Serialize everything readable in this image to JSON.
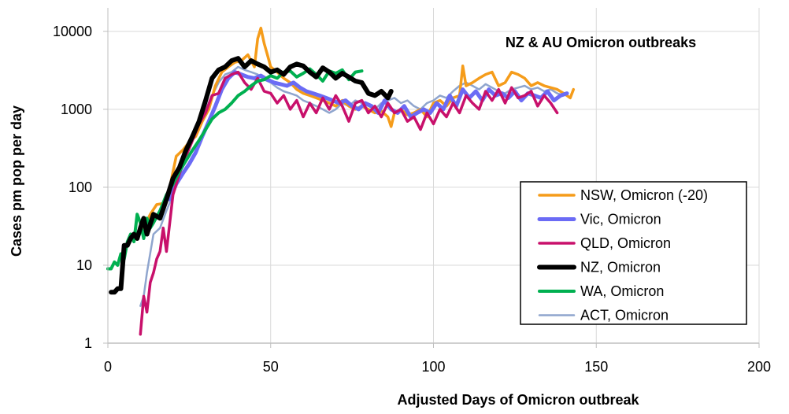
{
  "chart_data": {
    "type": "line",
    "title": "NZ & AU Omicron outbreaks",
    "xlabel": "Adjusted Days of Omicron outbreak",
    "ylabel": "Cases pm pop per day",
    "xlim": [
      0,
      200
    ],
    "ylim": [
      1,
      20000
    ],
    "yscale": "log",
    "grid": true,
    "legend_position": "right",
    "x_ticks": [
      "0",
      "50",
      "100",
      "150",
      "200"
    ],
    "y_ticks": [
      "1",
      "10",
      "100",
      "1000",
      "10000"
    ],
    "series": [
      {
        "name": "NSW, Omicron (-20)",
        "color": "#f59c1a",
        "width": 3.5,
        "x": [
          11,
          13,
          15,
          17,
          19,
          21,
          23,
          25,
          27,
          29,
          31,
          33,
          35,
          37,
          39,
          41,
          43,
          45,
          46,
          47,
          48,
          49,
          50,
          52,
          54,
          56,
          58,
          60,
          62,
          64,
          66,
          68,
          70,
          72,
          74,
          76,
          78,
          80,
          82,
          84,
          86,
          87,
          88,
          90,
          92,
          94,
          96,
          98,
          100,
          102,
          104,
          106,
          108,
          109,
          110,
          112,
          114,
          116,
          118,
          120,
          122,
          124,
          126,
          128,
          130,
          132,
          134,
          136,
          138,
          140,
          142,
          143
        ],
        "y": [
          30,
          45,
          60,
          62,
          100,
          250,
          300,
          380,
          450,
          700,
          1000,
          2000,
          3000,
          3500,
          4000,
          4200,
          5000,
          3500,
          8000,
          11000,
          7000,
          5000,
          3500,
          3000,
          2500,
          2200,
          1800,
          1600,
          1500,
          1400,
          1300,
          1200,
          1100,
          1300,
          1100,
          1000,
          1100,
          1000,
          900,
          950,
          800,
          600,
          900,
          1000,
          850,
          900,
          1000,
          800,
          1200,
          1300,
          1100,
          1400,
          1500,
          3600,
          2000,
          2200,
          2500,
          2800,
          3000,
          2000,
          2200,
          3000,
          2800,
          2500,
          2000,
          2200,
          2000,
          1900,
          1800,
          1600,
          1400,
          1800
        ]
      },
      {
        "name": "Vic, Omicron",
        "color": "#6b6bf5",
        "width": 5,
        "x": [
          19,
          21,
          23,
          25,
          27,
          29,
          31,
          33,
          35,
          37,
          39,
          41,
          43,
          45,
          47,
          49,
          51,
          53,
          55,
          57,
          59,
          61,
          63,
          65,
          67,
          69,
          71,
          73,
          75,
          77,
          79,
          81,
          83,
          85,
          87,
          89,
          91,
          93,
          95,
          97,
          99,
          101,
          103,
          105,
          107,
          109,
          111,
          113,
          115,
          117,
          119,
          121,
          123,
          125,
          127,
          129,
          131,
          133,
          135,
          137,
          139,
          141
        ],
        "y": [
          70,
          110,
          150,
          200,
          280,
          450,
          700,
          1100,
          1800,
          2500,
          3000,
          2800,
          2600,
          2500,
          2700,
          2400,
          2200,
          2100,
          2000,
          2200,
          1900,
          1700,
          1600,
          1500,
          1400,
          1300,
          1200,
          1300,
          1100,
          1000,
          1200,
          1100,
          900,
          1300,
          1000,
          900,
          1100,
          800,
          900,
          1000,
          900,
          1200,
          1000,
          1500,
          1100,
          1800,
          1400,
          1700,
          1300,
          1800,
          1500,
          1600,
          1400,
          1700,
          1300,
          1600,
          1500,
          1400,
          1700,
          1300,
          1500,
          1600
        ]
      },
      {
        "name": "QLD, Omicron",
        "color": "#c8106b",
        "width": 3.5,
        "x": [
          10,
          11,
          12,
          13,
          14,
          15,
          16,
          17,
          18,
          20,
          22,
          24,
          26,
          28,
          30,
          32,
          34,
          36,
          38,
          40,
          42,
          44,
          46,
          48,
          50,
          52,
          54,
          56,
          58,
          60,
          62,
          64,
          66,
          68,
          70,
          72,
          74,
          76,
          78,
          80,
          82,
          84,
          86,
          88,
          90,
          92,
          94,
          96,
          98,
          100,
          102,
          104,
          106,
          108,
          110,
          112,
          114,
          116,
          118,
          120,
          122,
          124,
          126,
          128,
          130,
          132,
          134,
          136,
          138
        ],
        "y": [
          1.3,
          4,
          2.5,
          6,
          8,
          12,
          15,
          30,
          15,
          80,
          150,
          250,
          400,
          650,
          900,
          1500,
          1600,
          2500,
          2800,
          3000,
          2200,
          1800,
          2500,
          1700,
          1600,
          1200,
          1500,
          1000,
          1300,
          800,
          1200,
          900,
          1400,
          1000,
          1500,
          1100,
          700,
          1200,
          1300,
          900,
          1100,
          800,
          1200,
          900,
          1000,
          700,
          800,
          550,
          900,
          650,
          1000,
          800,
          1200,
          900,
          1500,
          1200,
          1000,
          1700,
          1300,
          1800,
          1200,
          1900,
          1400,
          1500,
          1700,
          1100,
          1500,
          1200,
          900
        ]
      },
      {
        "name": "NZ, Omicron",
        "color": "#000000",
        "width": 6,
        "x": [
          1,
          2,
          3,
          4,
          5,
          6,
          7,
          8,
          9,
          10,
          11,
          12,
          14,
          16,
          18,
          20,
          22,
          24,
          26,
          28,
          30,
          32,
          34,
          36,
          38,
          40,
          42,
          44,
          46,
          48,
          50,
          52,
          54,
          56,
          58,
          60,
          62,
          64,
          66,
          68,
          70,
          72,
          74,
          76,
          78,
          80,
          82,
          84,
          86,
          87
        ],
        "y": [
          4.5,
          4.5,
          5,
          5,
          18,
          18,
          22,
          25,
          22,
          30,
          40,
          25,
          45,
          40,
          70,
          130,
          180,
          300,
          450,
          700,
          1300,
          2500,
          3200,
          3500,
          4200,
          4500,
          3500,
          4200,
          3800,
          3500,
          3000,
          3200,
          2800,
          3500,
          3800,
          3600,
          3000,
          2600,
          3400,
          3000,
          2500,
          2900,
          2600,
          2300,
          2200,
          1600,
          1500,
          1700,
          1400,
          1700
        ]
      },
      {
        "name": "WA, Omicron",
        "color": "#00b050",
        "width": 4,
        "x": [
          0,
          1,
          2,
          3,
          4,
          5,
          6,
          7,
          8,
          9,
          10,
          11,
          12,
          13,
          14,
          16,
          18,
          20,
          22,
          24,
          26,
          28,
          30,
          32,
          34,
          36,
          38,
          40,
          42,
          44,
          46,
          48,
          50,
          52,
          54,
          56,
          58,
          60,
          62,
          64,
          66,
          68,
          70,
          72,
          74,
          76,
          78
        ],
        "y": [
          9,
          9,
          11,
          10,
          14,
          12,
          20,
          25,
          20,
          45,
          35,
          22,
          40,
          30,
          35,
          50,
          80,
          110,
          160,
          220,
          300,
          400,
          550,
          750,
          900,
          1000,
          1200,
          1500,
          1700,
          2000,
          2300,
          2400,
          2700,
          2500,
          3000,
          3100,
          2600,
          2900,
          3300,
          2800,
          2300,
          3100,
          2900,
          3200,
          2400,
          3000,
          3100
        ]
      },
      {
        "name": "ACT, Omicron",
        "color": "#8fa5ce",
        "width": 2.5,
        "x": [
          10,
          11,
          12,
          14,
          16,
          18,
          20,
          22,
          24,
          26,
          28,
          30,
          32,
          34,
          36,
          38,
          40,
          42,
          44,
          46,
          48,
          50,
          52,
          54,
          56,
          58,
          60,
          62,
          64,
          66,
          68,
          70,
          72,
          74,
          76,
          78,
          80,
          82,
          84,
          86,
          88,
          90,
          92,
          94,
          96,
          98,
          100,
          102,
          104,
          106,
          108,
          110,
          112,
          114,
          116,
          118,
          120,
          122,
          124,
          126,
          128,
          130,
          132,
          134,
          136,
          138,
          140
        ],
        "y": [
          3,
          4,
          8,
          25,
          30,
          50,
          80,
          150,
          250,
          400,
          700,
          1000,
          1500,
          2200,
          2800,
          3000,
          3500,
          3200,
          3000,
          2800,
          2400,
          2200,
          1900,
          1700,
          1600,
          1500,
          1300,
          1200,
          1100,
          1000,
          900,
          1000,
          1200,
          1100,
          1300,
          1200,
          1100,
          1000,
          1200,
          1300,
          1400,
          1200,
          1300,
          1100,
          1000,
          1200,
          1300,
          1500,
          1400,
          1700,
          2000,
          2200,
          2000,
          1800,
          2100,
          1900,
          1700,
          1600,
          1800,
          1900,
          2000,
          1800,
          1900,
          1700,
          1800,
          1600,
          1500
        ]
      }
    ]
  }
}
